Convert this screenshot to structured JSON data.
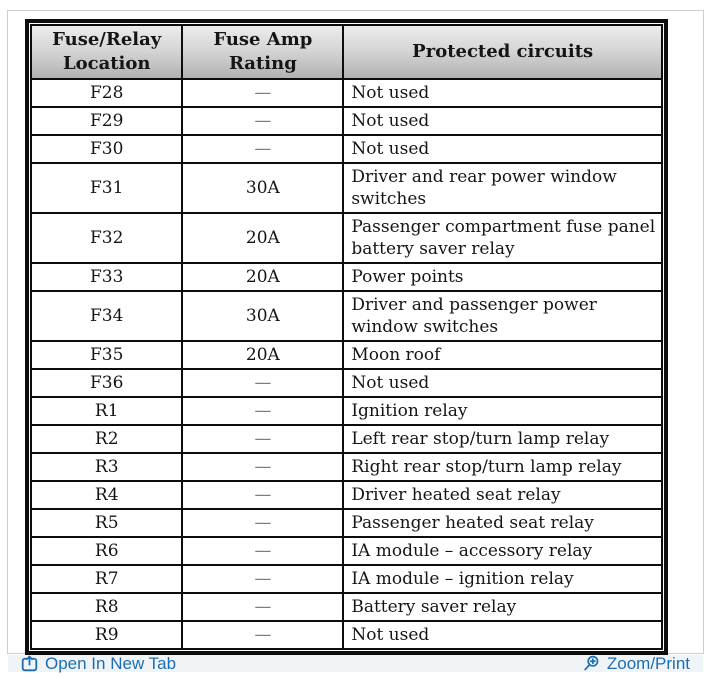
{
  "table": {
    "columns": [
      "Fuse/Relay Location",
      "Fuse Amp Rating",
      "Protected circuits"
    ],
    "dash": "—",
    "rows": [
      {
        "location": "F28",
        "amp": "—",
        "circuit": "Not used"
      },
      {
        "location": "F29",
        "amp": "—",
        "circuit": "Not used"
      },
      {
        "location": "F30",
        "amp": "—",
        "circuit": "Not used"
      },
      {
        "location": "F31",
        "amp": "30A",
        "circuit": "Driver and rear power window switches"
      },
      {
        "location": "F32",
        "amp": "20A",
        "circuit": "Passenger compartment fuse panel battery saver relay"
      },
      {
        "location": "F33",
        "amp": "20A",
        "circuit": "Power points"
      },
      {
        "location": "F34",
        "amp": "30A",
        "circuit": "Driver and passenger power window switches"
      },
      {
        "location": "F35",
        "amp": "20A",
        "circuit": "Moon roof"
      },
      {
        "location": "F36",
        "amp": "—",
        "circuit": "Not used"
      },
      {
        "location": "R1",
        "amp": "—",
        "circuit": "Ignition relay"
      },
      {
        "location": "R2",
        "amp": "—",
        "circuit": "Left rear stop/turn lamp relay"
      },
      {
        "location": "R3",
        "amp": "—",
        "circuit": "Right rear stop/turn lamp relay"
      },
      {
        "location": "R4",
        "amp": "—",
        "circuit": "Driver heated seat relay"
      },
      {
        "location": "R5",
        "amp": "—",
        "circuit": "Passenger heated seat relay"
      },
      {
        "location": "R6",
        "amp": "—",
        "circuit": "IA module – accessory relay"
      },
      {
        "location": "R7",
        "amp": "—",
        "circuit": "IA module – ignition relay"
      },
      {
        "location": "R8",
        "amp": "—",
        "circuit": "Battery saver relay"
      },
      {
        "location": "R9",
        "amp": "—",
        "circuit": "Not used"
      }
    ]
  },
  "footer": {
    "open_in_new_tab_label": "Open In New Tab",
    "zoom_print_label": "Zoom/Print"
  },
  "colors": {
    "link_blue": "#1c6eb4",
    "footer_bg": "#f1f4f6",
    "table_border": "#0d0d0d",
    "panel_border": "#c9ced2",
    "header_gradient_top": "#ececec",
    "header_gradient_bottom": "#b2b2b2",
    "dash_gray": "#6e8089"
  }
}
